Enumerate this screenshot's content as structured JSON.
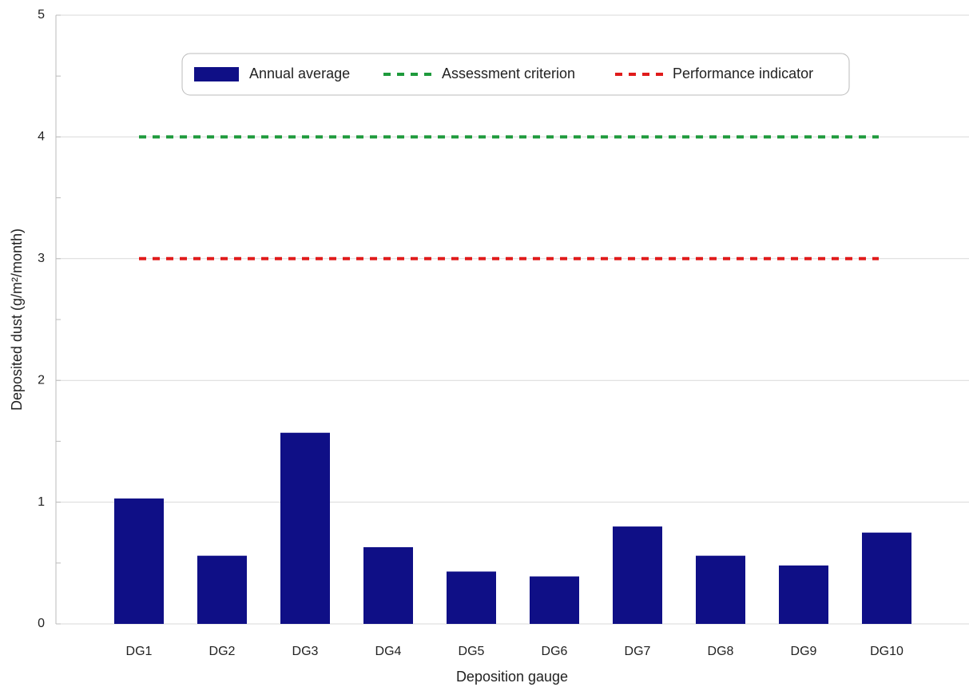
{
  "chart_data": {
    "type": "bar",
    "x_label": "Deposition gauge",
    "y_label": "Deposited dust (g/m²/month)",
    "categories": [
      "DG1",
      "DG2",
      "DG3",
      "DG4",
      "DG5",
      "DG6",
      "DG7",
      "DG8",
      "DG9",
      "DG10"
    ],
    "series": [
      {
        "name": "Annual average",
        "color": "#0f0f86",
        "values": [
          1.03,
          0.56,
          1.57,
          0.63,
          0.43,
          0.39,
          0.8,
          0.56,
          0.48,
          0.75
        ]
      }
    ],
    "reference_lines": [
      {
        "name": "Assessment criterion",
        "color": "#1e9a3c",
        "value": 4
      },
      {
        "name": "Performance indicator",
        "color": "#e01b1b",
        "value": 3
      }
    ],
    "ylim": [
      0,
      5
    ],
    "yticks": [
      0,
      1,
      2,
      3,
      4,
      5
    ],
    "minor_yticks": [
      0.5,
      1.5,
      2.5,
      3.5,
      4.5
    ],
    "grid": true,
    "legend": "top"
  }
}
